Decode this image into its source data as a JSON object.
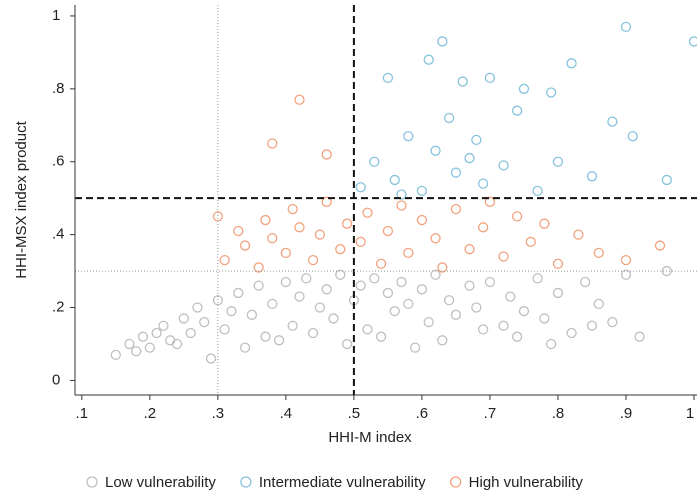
{
  "chart_data": {
    "type": "scatter",
    "xlabel": "HHI-M index",
    "ylabel": "HHI-MSX index product",
    "xlim": [
      0.09,
      1.0
    ],
    "ylim": [
      -0.04,
      1.03
    ],
    "xticks": [
      {
        "value": 0.1,
        "label": ".1"
      },
      {
        "value": 0.2,
        "label": ".2"
      },
      {
        "value": 0.3,
        "label": ".3"
      },
      {
        "value": 0.4,
        "label": ".4"
      },
      {
        "value": 0.5,
        "label": ".5"
      },
      {
        "value": 0.6,
        "label": ".6"
      },
      {
        "value": 0.7,
        "label": ".7"
      },
      {
        "value": 0.8,
        "label": ".8"
      },
      {
        "value": 0.9,
        "label": ".9"
      },
      1
    ],
    "yticks": [
      0,
      {
        "value": 0.2,
        "label": ".2"
      },
      {
        "value": 0.4,
        "label": ".4"
      },
      {
        "value": 0.6,
        "label": ".6"
      },
      {
        "value": 0.8,
        "label": ".8"
      },
      1
    ],
    "vlines": [
      {
        "value": 0.5,
        "style": "dashed"
      },
      {
        "value": 0.3,
        "style": "dotted"
      }
    ],
    "hlines": [
      {
        "value": 0.5,
        "style": "dashed"
      },
      {
        "value": 0.3,
        "style": "dotted"
      }
    ],
    "legend": "bottom",
    "series": [
      {
        "name": "Low vulnerability",
        "color": "#bfbfbf",
        "x": [
          0.15,
          0.17,
          0.19,
          0.2,
          0.22,
          0.23,
          0.25,
          0.26,
          0.27,
          0.28,
          0.3,
          0.31,
          0.32,
          0.33,
          0.35,
          0.36,
          0.37,
          0.38,
          0.4,
          0.41,
          0.42,
          0.43,
          0.45,
          0.46,
          0.47,
          0.48,
          0.5,
          0.51,
          0.52,
          0.53,
          0.55,
          0.56,
          0.57,
          0.58,
          0.6,
          0.61,
          0.62,
          0.64,
          0.65,
          0.67,
          0.68,
          0.7,
          0.72,
          0.73,
          0.75,
          0.77,
          0.78,
          0.8,
          0.82,
          0.84,
          0.86,
          0.88,
          0.9,
          0.92,
          0.96,
          0.18,
          0.21,
          0.24,
          0.29,
          0.34,
          0.39,
          0.44,
          0.49,
          0.54,
          0.59,
          0.63,
          0.69,
          0.74,
          0.79,
          0.85
        ],
        "values": [
          0.07,
          0.1,
          0.12,
          0.09,
          0.15,
          0.11,
          0.17,
          0.13,
          0.2,
          0.16,
          0.22,
          0.14,
          0.19,
          0.24,
          0.18,
          0.26,
          0.12,
          0.21,
          0.27,
          0.15,
          0.23,
          0.28,
          0.2,
          0.25,
          0.17,
          0.29,
          0.22,
          0.26,
          0.14,
          0.28,
          0.24,
          0.19,
          0.27,
          0.21,
          0.25,
          0.16,
          0.29,
          0.22,
          0.18,
          0.26,
          0.2,
          0.27,
          0.15,
          0.23,
          0.19,
          0.28,
          0.17,
          0.24,
          0.13,
          0.27,
          0.21,
          0.16,
          0.29,
          0.12,
          0.3,
          0.08,
          0.13,
          0.1,
          0.06,
          0.09,
          0.11,
          0.13,
          0.1,
          0.12,
          0.09,
          0.11,
          0.14,
          0.12,
          0.1,
          0.15
        ]
      },
      {
        "name": "Intermediate vulnerability",
        "color": "#86c3dc",
        "x": [
          0.51,
          0.53,
          0.55,
          0.56,
          0.58,
          0.6,
          0.61,
          0.62,
          0.64,
          0.65,
          0.66,
          0.67,
          0.68,
          0.69,
          0.7,
          0.72,
          0.74,
          0.75,
          0.77,
          0.79,
          0.8,
          0.82,
          0.85,
          0.88,
          0.9,
          0.91,
          0.96,
          1.0,
          0.57,
          0.63
        ],
        "values": [
          0.53,
          0.6,
          0.83,
          0.55,
          0.67,
          0.52,
          0.88,
          0.63,
          0.72,
          0.57,
          0.82,
          0.61,
          0.66,
          0.54,
          0.83,
          0.59,
          0.74,
          0.8,
          0.52,
          0.79,
          0.6,
          0.87,
          0.56,
          0.71,
          0.97,
          0.67,
          0.55,
          0.93,
          0.51,
          0.93
        ]
      },
      {
        "name": "High vulnerability",
        "color": "#f2a27e",
        "x": [
          0.3,
          0.31,
          0.33,
          0.34,
          0.36,
          0.37,
          0.38,
          0.4,
          0.41,
          0.42,
          0.44,
          0.45,
          0.46,
          0.48,
          0.49,
          0.51,
          0.52,
          0.54,
          0.55,
          0.57,
          0.58,
          0.6,
          0.62,
          0.63,
          0.65,
          0.67,
          0.69,
          0.7,
          0.72,
          0.74,
          0.76,
          0.78,
          0.8,
          0.83,
          0.86,
          0.9,
          0.95,
          0.38,
          0.42,
          0.46
        ],
        "values": [
          0.45,
          0.33,
          0.41,
          0.37,
          0.31,
          0.44,
          0.39,
          0.35,
          0.47,
          0.42,
          0.33,
          0.4,
          0.49,
          0.36,
          0.43,
          0.38,
          0.46,
          0.32,
          0.41,
          0.48,
          0.35,
          0.44,
          0.39,
          0.31,
          0.47,
          0.36,
          0.42,
          0.49,
          0.34,
          0.45,
          0.38,
          0.43,
          0.32,
          0.4,
          0.35,
          0.33,
          0.37,
          0.65,
          0.77,
          0.62
        ]
      }
    ]
  }
}
